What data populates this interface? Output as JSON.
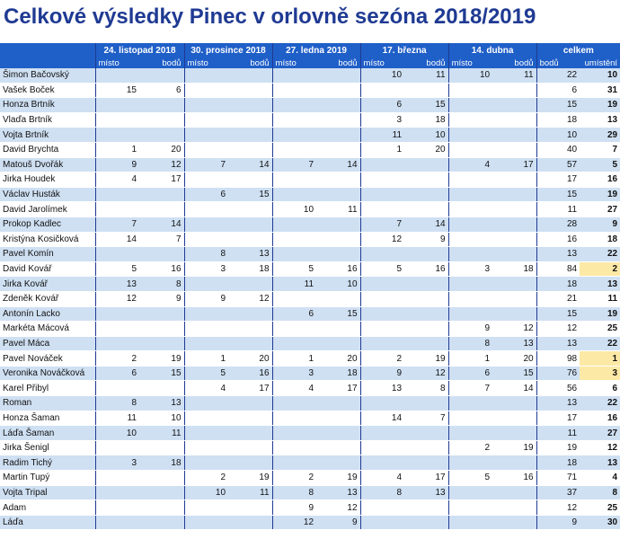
{
  "title": "Celkové výsledky Pinec v orlovně sezóna 2018/2019",
  "events": [
    "24. listopad 2018",
    "30. prosince 2018",
    "27. ledna 2019",
    "17. března",
    "14. dubna"
  ],
  "total_label": "celkem",
  "sub": {
    "misto": "místo",
    "bodu": "bodů",
    "umisteni": "umístění"
  },
  "rows": [
    {
      "name": "Šimon Bačovský",
      "r": [
        [
          "",
          ""
        ],
        [
          "",
          ""
        ],
        [
          "",
          ""
        ],
        [
          "10",
          "11"
        ],
        [
          "10",
          "11"
        ]
      ],
      "total": "22",
      "place": "10"
    },
    {
      "name": "Vašek Boček",
      "r": [
        [
          "15",
          "6"
        ],
        [
          "",
          ""
        ],
        [
          "",
          ""
        ],
        [
          "",
          ""
        ],
        [
          "",
          ""
        ]
      ],
      "total": "6",
      "place": "31"
    },
    {
      "name": "Honza Brtník",
      "r": [
        [
          "",
          ""
        ],
        [
          "",
          ""
        ],
        [
          "",
          ""
        ],
        [
          "6",
          "15"
        ],
        [
          "",
          ""
        ]
      ],
      "total": "15",
      "place": "19"
    },
    {
      "name": "Vlaďa Brtník",
      "r": [
        [
          "",
          ""
        ],
        [
          "",
          ""
        ],
        [
          "",
          ""
        ],
        [
          "3",
          "18"
        ],
        [
          "",
          ""
        ]
      ],
      "total": "18",
      "place": "13"
    },
    {
      "name": "Vojta Brtník",
      "r": [
        [
          "",
          ""
        ],
        [
          "",
          ""
        ],
        [
          "",
          ""
        ],
        [
          "11",
          "10"
        ],
        [
          "",
          ""
        ]
      ],
      "total": "10",
      "place": "29"
    },
    {
      "name": "David Brychta",
      "r": [
        [
          "1",
          "20"
        ],
        [
          "",
          ""
        ],
        [
          "",
          ""
        ],
        [
          "1",
          "20"
        ],
        [
          "",
          ""
        ]
      ],
      "total": "40",
      "place": "7"
    },
    {
      "name": "Matouš Dvořák",
      "r": [
        [
          "9",
          "12"
        ],
        [
          "7",
          "14"
        ],
        [
          "7",
          "14"
        ],
        [
          "",
          ""
        ],
        [
          "4",
          "17"
        ]
      ],
      "total": "57",
      "place": "5"
    },
    {
      "name": "Jirka Houdek",
      "r": [
        [
          "4",
          "17"
        ],
        [
          "",
          ""
        ],
        [
          "",
          ""
        ],
        [
          "",
          ""
        ],
        [
          "",
          ""
        ]
      ],
      "total": "17",
      "place": "16"
    },
    {
      "name": "Václav Husták",
      "r": [
        [
          "",
          ""
        ],
        [
          "6",
          "15"
        ],
        [
          "",
          ""
        ],
        [
          "",
          ""
        ],
        [
          "",
          ""
        ]
      ],
      "total": "15",
      "place": "19"
    },
    {
      "name": "David Jarolímek",
      "r": [
        [
          "",
          ""
        ],
        [
          "",
          ""
        ],
        [
          "10",
          "11"
        ],
        [
          "",
          ""
        ],
        [
          "",
          ""
        ]
      ],
      "total": "11",
      "place": "27"
    },
    {
      "name": "Prokop Kadlec",
      "r": [
        [
          "7",
          "14"
        ],
        [
          "",
          ""
        ],
        [
          "",
          ""
        ],
        [
          "7",
          "14"
        ],
        [
          "",
          ""
        ]
      ],
      "total": "28",
      "place": "9"
    },
    {
      "name": "Kristýna Kosičková",
      "r": [
        [
          "14",
          "7"
        ],
        [
          "",
          ""
        ],
        [
          "",
          ""
        ],
        [
          "12",
          "9"
        ],
        [
          "",
          ""
        ]
      ],
      "total": "16",
      "place": "18"
    },
    {
      "name": "Pavel Komín",
      "r": [
        [
          "",
          ""
        ],
        [
          "8",
          "13"
        ],
        [
          "",
          ""
        ],
        [
          "",
          ""
        ],
        [
          "",
          ""
        ]
      ],
      "total": "13",
      "place": "22"
    },
    {
      "name": "David Kovář",
      "r": [
        [
          "5",
          "16"
        ],
        [
          "3",
          "18"
        ],
        [
          "5",
          "16"
        ],
        [
          "5",
          "16"
        ],
        [
          "3",
          "18"
        ]
      ],
      "total": "84",
      "place": "2",
      "hl": true
    },
    {
      "name": "Jirka Kovář",
      "r": [
        [
          "13",
          "8"
        ],
        [
          "",
          ""
        ],
        [
          "11",
          "10"
        ],
        [
          "",
          ""
        ],
        [
          "",
          ""
        ]
      ],
      "total": "18",
      "place": "13"
    },
    {
      "name": "Zdeněk Kovář",
      "r": [
        [
          "12",
          "9"
        ],
        [
          "9",
          "12"
        ],
        [
          "",
          ""
        ],
        [
          "",
          ""
        ],
        [
          "",
          ""
        ]
      ],
      "total": "21",
      "place": "11"
    },
    {
      "name": "Antonín Lacko",
      "r": [
        [
          "",
          ""
        ],
        [
          "",
          ""
        ],
        [
          "6",
          "15"
        ],
        [
          "",
          ""
        ],
        [
          "",
          ""
        ]
      ],
      "total": "15",
      "place": "19"
    },
    {
      "name": "Markéta Mácová",
      "r": [
        [
          "",
          ""
        ],
        [
          "",
          ""
        ],
        [
          "",
          ""
        ],
        [
          "",
          ""
        ],
        [
          "9",
          "12"
        ]
      ],
      "total": "12",
      "place": "25"
    },
    {
      "name": "Pavel Máca",
      "r": [
        [
          "",
          ""
        ],
        [
          "",
          ""
        ],
        [
          "",
          ""
        ],
        [
          "",
          ""
        ],
        [
          "8",
          "13"
        ]
      ],
      "total": "13",
      "place": "22"
    },
    {
      "name": "Pavel Nováček",
      "r": [
        [
          "2",
          "19"
        ],
        [
          "1",
          "20"
        ],
        [
          "1",
          "20"
        ],
        [
          "2",
          "19"
        ],
        [
          "1",
          "20"
        ]
      ],
      "total": "98",
      "place": "1",
      "hl": true
    },
    {
      "name": "Veronika Nováčková",
      "r": [
        [
          "6",
          "15"
        ],
        [
          "5",
          "16"
        ],
        [
          "3",
          "18"
        ],
        [
          "9",
          "12"
        ],
        [
          "6",
          "15"
        ]
      ],
      "total": "76",
      "place": "3",
      "hl": true
    },
    {
      "name": "Karel Přibyl",
      "r": [
        [
          "",
          ""
        ],
        [
          "4",
          "17"
        ],
        [
          "4",
          "17"
        ],
        [
          "13",
          "8"
        ],
        [
          "7",
          "14"
        ]
      ],
      "total": "56",
      "place": "6"
    },
    {
      "name": "Roman",
      "r": [
        [
          "8",
          "13"
        ],
        [
          "",
          ""
        ],
        [
          "",
          ""
        ],
        [
          "",
          ""
        ],
        [
          "",
          ""
        ]
      ],
      "total": "13",
      "place": "22"
    },
    {
      "name": "Honza Šaman",
      "r": [
        [
          "11",
          "10"
        ],
        [
          "",
          ""
        ],
        [
          "",
          ""
        ],
        [
          "14",
          "7"
        ],
        [
          "",
          ""
        ]
      ],
      "total": "17",
      "place": "16"
    },
    {
      "name": "Láďa Šaman",
      "r": [
        [
          "10",
          "11"
        ],
        [
          "",
          ""
        ],
        [
          "",
          ""
        ],
        [
          "",
          ""
        ],
        [
          "",
          ""
        ]
      ],
      "total": "11",
      "place": "27"
    },
    {
      "name": "Jirka Šenigl",
      "r": [
        [
          "",
          ""
        ],
        [
          "",
          ""
        ],
        [
          "",
          ""
        ],
        [
          "",
          ""
        ],
        [
          "2",
          "19"
        ]
      ],
      "total": "19",
      "place": "12"
    },
    {
      "name": "Radim Tichý",
      "r": [
        [
          "3",
          "18"
        ],
        [
          "",
          ""
        ],
        [
          "",
          ""
        ],
        [
          "",
          ""
        ],
        [
          "",
          ""
        ]
      ],
      "total": "18",
      "place": "13"
    },
    {
      "name": "Martin Tupý",
      "r": [
        [
          "",
          ""
        ],
        [
          "2",
          "19"
        ],
        [
          "2",
          "19"
        ],
        [
          "4",
          "17"
        ],
        [
          "5",
          "16"
        ]
      ],
      "total": "71",
      "place": "4"
    },
    {
      "name": "Vojta Tripal",
      "r": [
        [
          "",
          ""
        ],
        [
          "10",
          "11"
        ],
        [
          "8",
          "13"
        ],
        [
          "8",
          "13"
        ],
        [
          "",
          ""
        ]
      ],
      "total": "37",
      "place": "8"
    },
    {
      "name": "Adam",
      "r": [
        [
          "",
          ""
        ],
        [
          "",
          ""
        ],
        [
          "9",
          "12"
        ],
        [
          "",
          ""
        ],
        [
          "",
          ""
        ]
      ],
      "total": "12",
      "place": "25"
    },
    {
      "name": "Láďa",
      "r": [
        [
          "",
          ""
        ],
        [
          "",
          ""
        ],
        [
          "12",
          "9"
        ],
        [
          "",
          ""
        ],
        [
          "",
          ""
        ]
      ],
      "total": "9",
      "place": "30"
    }
  ]
}
